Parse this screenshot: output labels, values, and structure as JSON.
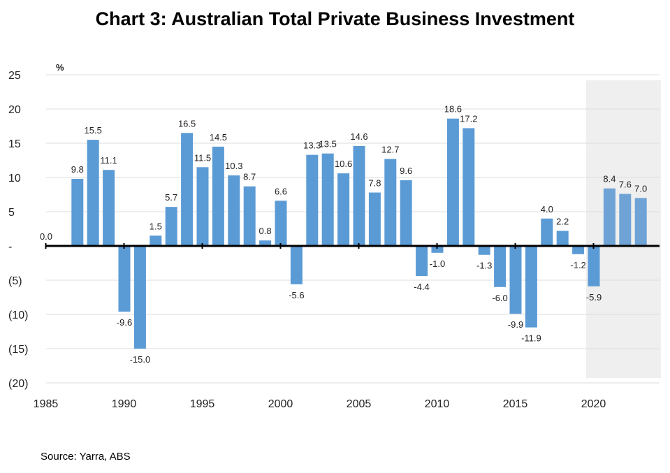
{
  "title": "Chart 3: Australian Total Private Business Investment",
  "source": "Source: Yarra, ABS",
  "chart_data": {
    "type": "bar",
    "ylabel": "%",
    "ylim": [
      -20,
      25
    ],
    "grid": true,
    "legend": "none",
    "bar_color": "#5b9bd5",
    "forecast_bar_color": "#6fa3d6",
    "forecast_shade_color": "#efefef",
    "forecast_shade_from": 2020,
    "y_ticks": [
      {
        "value": 25,
        "label": "25"
      },
      {
        "value": 20,
        "label": "20"
      },
      {
        "value": 15,
        "label": "15"
      },
      {
        "value": 10,
        "label": "10"
      },
      {
        "value": 5,
        "label": "5"
      },
      {
        "value": 0,
        "label": "-"
      },
      {
        "value": -5,
        "label": "(5)"
      },
      {
        "value": -10,
        "label": "(10)"
      },
      {
        "value": -15,
        "label": "(15)"
      },
      {
        "value": -20,
        "label": "(20)"
      }
    ],
    "x_ticks": [
      "1985",
      "1990",
      "1995",
      "2000",
      "2005",
      "2010",
      "2015",
      "2020"
    ],
    "points": [
      {
        "year": 1985,
        "value": 0.0,
        "label": "0.0"
      },
      {
        "year": 1986,
        "value": null,
        "label": ""
      },
      {
        "year": 1987,
        "value": 9.8,
        "label": "9.8"
      },
      {
        "year": 1988,
        "value": 15.5,
        "label": "15.5"
      },
      {
        "year": 1989,
        "value": 11.1,
        "label": "11.1"
      },
      {
        "year": 1990,
        "value": -9.6,
        "label": "-9.6"
      },
      {
        "year": 1991,
        "value": -15.0,
        "label": "-15.0"
      },
      {
        "year": 1992,
        "value": 1.5,
        "label": "1.5"
      },
      {
        "year": 1993,
        "value": 5.7,
        "label": "5.7"
      },
      {
        "year": 1994,
        "value": 16.5,
        "label": "16.5"
      },
      {
        "year": 1995,
        "value": 11.5,
        "label": "11.5"
      },
      {
        "year": 1996,
        "value": 14.5,
        "label": "14.5"
      },
      {
        "year": 1997,
        "value": 10.3,
        "label": "10.3"
      },
      {
        "year": 1998,
        "value": 8.7,
        "label": "8.7"
      },
      {
        "year": 1999,
        "value": 0.8,
        "label": "0.8"
      },
      {
        "year": 2000,
        "value": 6.6,
        "label": "6.6"
      },
      {
        "year": 2001,
        "value": -5.6,
        "label": "-5.6"
      },
      {
        "year": 2002,
        "value": 13.3,
        "label": "13.3"
      },
      {
        "year": 2003,
        "value": 13.5,
        "label": "13.5"
      },
      {
        "year": 2004,
        "value": 10.6,
        "label": "10.6"
      },
      {
        "year": 2005,
        "value": 14.6,
        "label": "14.6"
      },
      {
        "year": 2006,
        "value": 7.8,
        "label": "7.8"
      },
      {
        "year": 2007,
        "value": 12.7,
        "label": "12.7"
      },
      {
        "year": 2008,
        "value": 9.6,
        "label": "9.6"
      },
      {
        "year": 2009,
        "value": -4.4,
        "label": "-4.4"
      },
      {
        "year": 2010,
        "value": -1.0,
        "label": "-1.0"
      },
      {
        "year": 2011,
        "value": 18.6,
        "label": "18.6"
      },
      {
        "year": 2012,
        "value": 17.2,
        "label": "17.2"
      },
      {
        "year": 2013,
        "value": -1.3,
        "label": "-1.3"
      },
      {
        "year": 2014,
        "value": -6.0,
        "label": "-6.0"
      },
      {
        "year": 2015,
        "value": -9.9,
        "label": "-9.9"
      },
      {
        "year": 2016,
        "value": -11.9,
        "label": "-11.9"
      },
      {
        "year": 2017,
        "value": 4.0,
        "label": "4.0"
      },
      {
        "year": 2018,
        "value": 2.2,
        "label": "2.2"
      },
      {
        "year": 2019,
        "value": -1.2,
        "label": "-1.2"
      },
      {
        "year": 2020,
        "value": -5.9,
        "label": "-5.9"
      },
      {
        "year": 2021,
        "value": 8.4,
        "label": "8.4"
      },
      {
        "year": 2022,
        "value": 7.6,
        "label": "7.6"
      },
      {
        "year": 2023,
        "value": 7.0,
        "label": "7.0"
      }
    ]
  }
}
